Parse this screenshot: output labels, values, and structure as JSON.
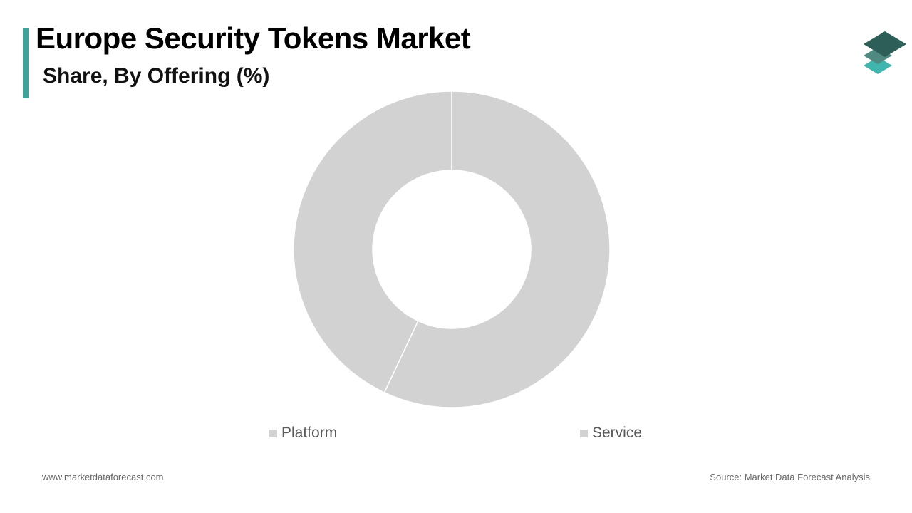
{
  "header": {
    "title": "Europe Security Tokens Market",
    "subtitle": "Share, By Offering (%)"
  },
  "logo": {
    "icon": "stacked-layers-icon",
    "colors": [
      "#2d5e57",
      "#4f8a82",
      "#3fb5ad"
    ]
  },
  "chart_data": {
    "type": "pie",
    "variant": "donut",
    "title": "Europe Security Tokens Market",
    "subtitle": "Share, By Offering (%)",
    "categories": [
      "Platform",
      "Service"
    ],
    "values": [
      43,
      57
    ],
    "colors": [
      "#d3d2d3",
      "#d3d2d3"
    ],
    "start": "12 o'clock",
    "direction": "clockwise",
    "slice_order": [
      "Service",
      "Platform"
    ],
    "legend": "bottom"
  },
  "footer": {
    "website": "www.marketdataforecast.com",
    "source": "Source: Market Data Forecast Analysis"
  }
}
